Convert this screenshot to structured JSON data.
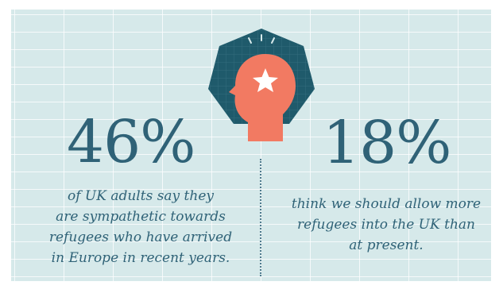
{
  "stats": {
    "left": {
      "value": "46%",
      "lines": [
        "of UK adults say they",
        "are sympathetic towards",
        "refugees who have arrived",
        "in Europe in recent years."
      ]
    },
    "right": {
      "value": "18%",
      "lines": [
        "think we should allow more",
        "refugees into the UK than",
        "at present."
      ]
    }
  },
  "icon": {
    "name": "head-star-icon"
  },
  "colors": {
    "background": "#d6e9ea",
    "text": "#2f6277",
    "heptagon": "#1f5a6b",
    "head": "#f27a62",
    "star": "#ffffff"
  }
}
